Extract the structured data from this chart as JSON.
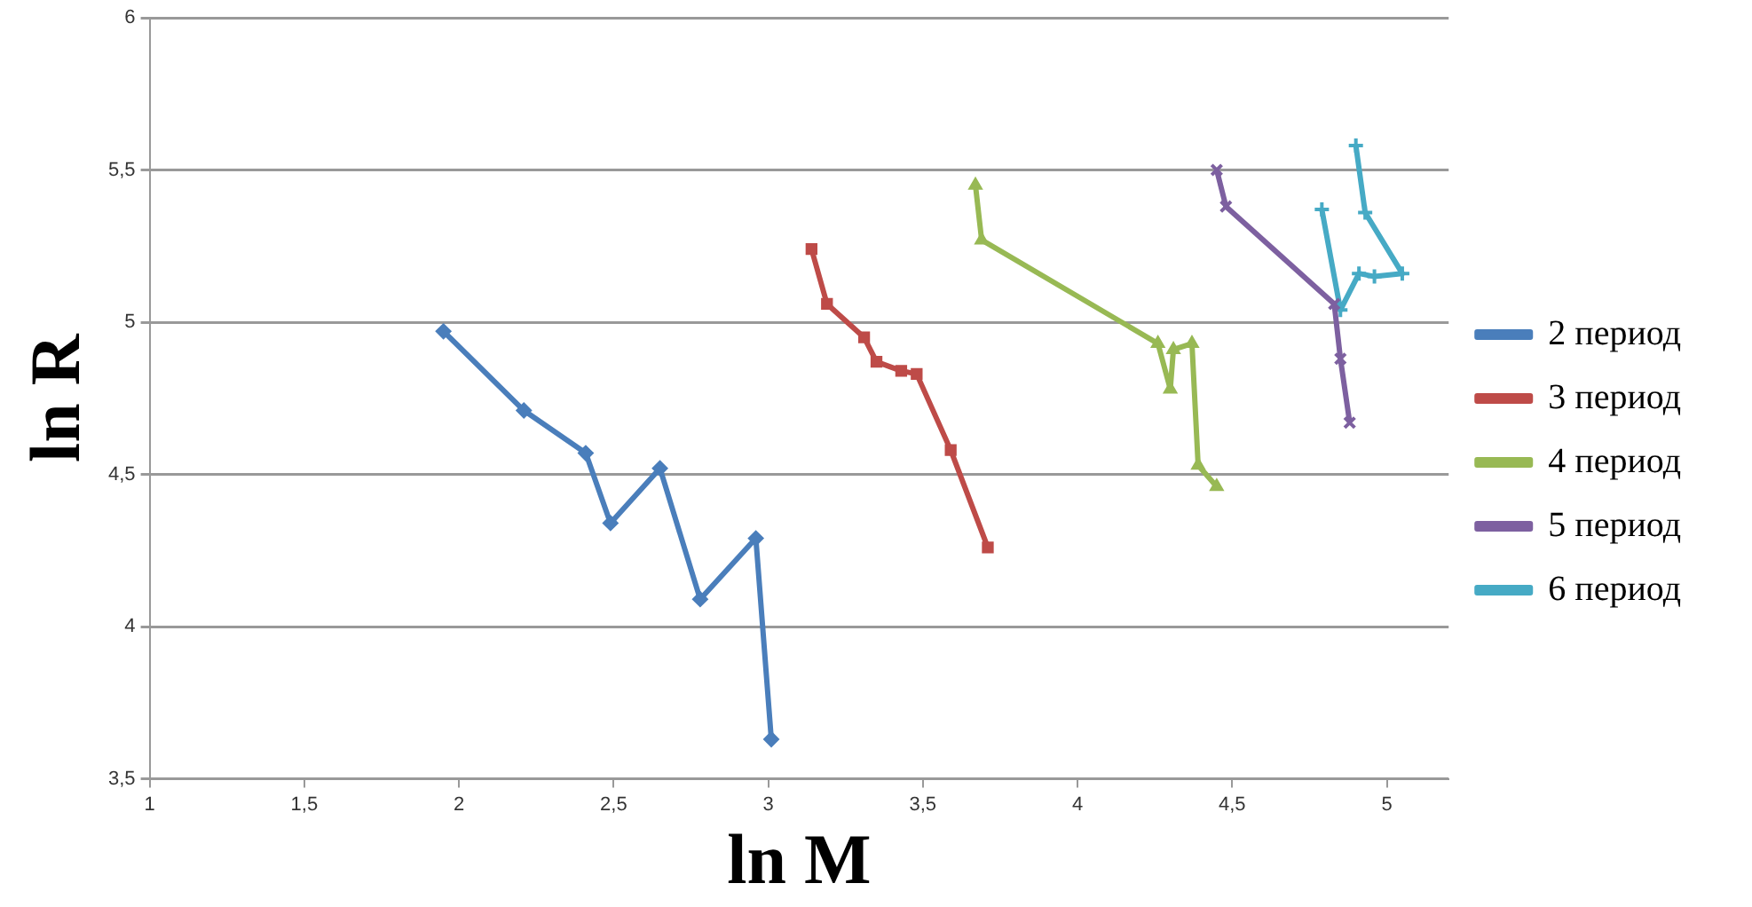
{
  "chart_data": {
    "type": "line",
    "xlabel": "ln M",
    "ylabel": "ln R",
    "legend": "right",
    "grid": "y",
    "xlim": [
      1,
      5.2
    ],
    "xticks": [
      1,
      {
        "value": 1.5,
        "label": "1,5"
      },
      2,
      {
        "value": 2.5,
        "label": "2,5"
      },
      3,
      {
        "value": 3.5,
        "label": "3,5"
      },
      4,
      {
        "value": 4.5,
        "label": "4,5"
      },
      5
    ],
    "ylim": [
      3.5,
      6
    ],
    "yticks": [
      {
        "value": 3.5,
        "label": "3,5"
      },
      4,
      {
        "value": 4.5,
        "label": "4,5"
      },
      5,
      {
        "value": 5.5,
        "label": "5,5"
      },
      6
    ],
    "series": [
      {
        "name": "2 период",
        "color": "#4a7ebb",
        "marker": "diamond",
        "x": [
          1.95,
          2.21,
          2.41,
          2.49,
          2.65,
          2.78,
          2.96,
          3.01
        ],
        "values": [
          4.97,
          4.71,
          4.57,
          4.34,
          4.52,
          4.09,
          4.29,
          3.63
        ]
      },
      {
        "name": "3 период",
        "color": "#be4b48",
        "marker": "square",
        "x": [
          3.14,
          3.19,
          3.31,
          3.35,
          3.43,
          3.48,
          3.59,
          3.71
        ],
        "values": [
          5.24,
          5.06,
          4.95,
          4.87,
          4.84,
          4.83,
          4.58,
          4.26
        ]
      },
      {
        "name": "4 период",
        "color": "#98b954",
        "marker": "triangle",
        "x": [
          3.67,
          3.69,
          4.26,
          4.3,
          4.31,
          4.37,
          4.39,
          4.45
        ],
        "values": [
          5.45,
          5.27,
          4.93,
          4.78,
          4.91,
          4.93,
          4.53,
          4.46
        ]
      },
      {
        "name": "5 период",
        "color": "#7d60a0",
        "marker": "cross",
        "x": [
          4.45,
          4.48,
          4.83,
          4.85,
          4.88
        ],
        "values": [
          5.5,
          5.38,
          5.06,
          4.88,
          4.67
        ]
      },
      {
        "name": "6 период",
        "color": "#46aac5",
        "marker": "plus",
        "x": [
          4.79,
          4.85,
          4.91,
          4.96,
          5.05,
          4.93,
          4.9
        ],
        "values": [
          5.37,
          5.04,
          5.16,
          5.15,
          5.16,
          5.36,
          5.58
        ]
      }
    ]
  }
}
